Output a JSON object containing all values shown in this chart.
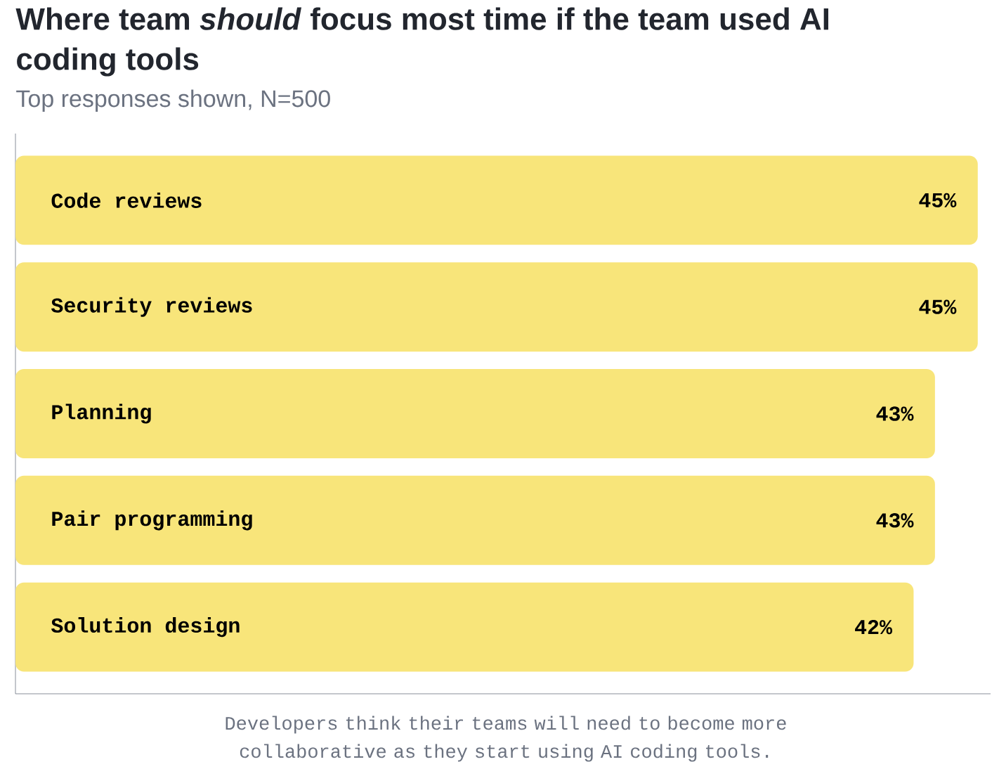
{
  "chart_data": {
    "type": "bar",
    "orientation": "horizontal",
    "title": "Where team *should* focus most time if the team used AI coding tools",
    "subtitle": "Top responses shown, N=500",
    "categories": [
      "Code reviews",
      "Security reviews",
      "Planning",
      "Pair programming",
      "Solution design"
    ],
    "values": [
      45,
      45,
      43,
      43,
      42
    ],
    "value_labels": [
      "45%",
      "45%",
      "43%",
      "43%",
      "42%"
    ],
    "color": "#f8e57a",
    "xlim": [
      0,
      45.6
    ],
    "annotations": [
      "Developers think their teams will need to become more collaborative as they start using AI coding tools."
    ]
  }
}
